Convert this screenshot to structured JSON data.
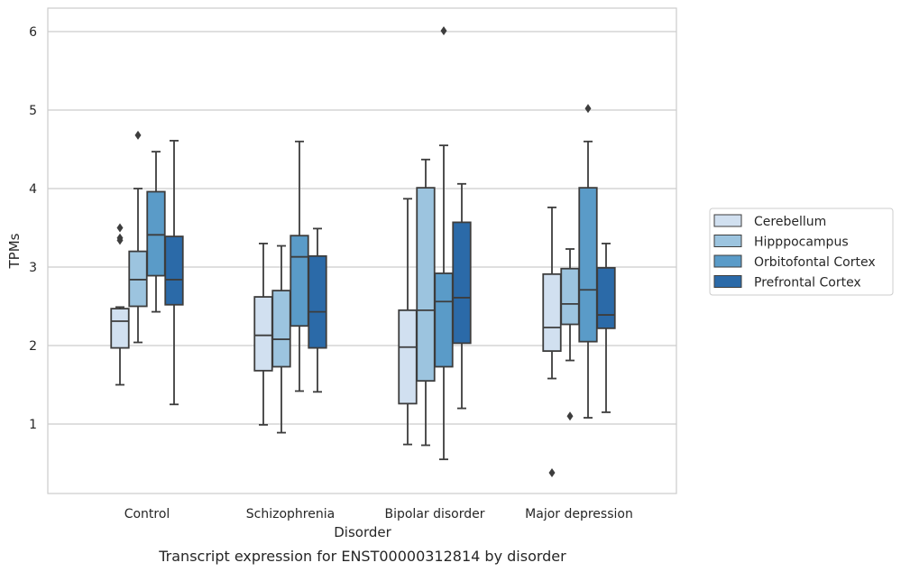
{
  "caption": "Transcript expression for ENST00000312814 by disorder",
  "chart_data": {
    "type": "box",
    "title": "",
    "xlabel": "Disorder",
    "ylabel": "TPMs",
    "ylim": [
      0.1,
      6.3
    ],
    "yticks": [
      1,
      2,
      3,
      4,
      5,
      6
    ],
    "grid": "horizontal",
    "legend_position": "right",
    "categories": [
      "Control",
      "Schizophrenia",
      "Bipolar disorder",
      "Major depression"
    ],
    "series": [
      {
        "name": "Cerebellum",
        "color": "#d1e0f0",
        "boxes": [
          {
            "whisker_low": 1.5,
            "q1": 1.97,
            "median": 2.31,
            "q3": 2.47,
            "whisker_high": 2.49,
            "outliers": [
              3.37,
              3.5,
              3.34
            ]
          },
          {
            "whisker_low": 0.99,
            "q1": 1.68,
            "median": 2.13,
            "q3": 2.62,
            "whisker_high": 3.3,
            "outliers": []
          },
          {
            "whisker_low": 0.74,
            "q1": 1.26,
            "median": 1.98,
            "q3": 2.45,
            "whisker_high": 3.87,
            "outliers": []
          },
          {
            "whisker_low": 1.58,
            "q1": 1.93,
            "median": 2.23,
            "q3": 2.91,
            "whisker_high": 3.76,
            "outliers": [
              0.38
            ]
          }
        ]
      },
      {
        "name": "Hipppocampus",
        "color": "#9cc4df",
        "boxes": [
          {
            "whisker_low": 2.04,
            "q1": 2.5,
            "median": 2.84,
            "q3": 3.2,
            "whisker_high": 4.0,
            "outliers": [
              4.68
            ]
          },
          {
            "whisker_low": 0.89,
            "q1": 1.73,
            "median": 2.08,
            "q3": 2.7,
            "whisker_high": 3.27,
            "outliers": []
          },
          {
            "whisker_low": 0.73,
            "q1": 1.55,
            "median": 2.45,
            "q3": 4.01,
            "whisker_high": 4.37,
            "outliers": []
          },
          {
            "whisker_low": 1.81,
            "q1": 2.27,
            "median": 2.53,
            "q3": 2.98,
            "whisker_high": 3.23,
            "outliers": [
              1.1
            ]
          }
        ]
      },
      {
        "name": "Orbitofontal Cortex",
        "color": "#5a9bc8",
        "boxes": [
          {
            "whisker_low": 2.43,
            "q1": 2.89,
            "median": 3.41,
            "q3": 3.96,
            "whisker_high": 4.47,
            "outliers": []
          },
          {
            "whisker_low": 1.42,
            "q1": 2.25,
            "median": 3.13,
            "q3": 3.4,
            "whisker_high": 4.6,
            "outliers": []
          },
          {
            "whisker_low": 0.55,
            "q1": 1.73,
            "median": 2.56,
            "q3": 2.92,
            "whisker_high": 4.55,
            "outliers": [
              6.01
            ]
          },
          {
            "whisker_low": 1.08,
            "q1": 2.05,
            "median": 2.71,
            "q3": 4.01,
            "whisker_high": 4.6,
            "outliers": [
              5.02
            ]
          }
        ]
      },
      {
        "name": "Prefrontal Cortex",
        "color": "#2b6aa8",
        "boxes": [
          {
            "whisker_low": 1.25,
            "q1": 2.52,
            "median": 2.84,
            "q3": 3.39,
            "whisker_high": 4.61,
            "outliers": []
          },
          {
            "whisker_low": 1.41,
            "q1": 1.97,
            "median": 2.43,
            "q3": 3.14,
            "whisker_high": 3.49,
            "outliers": []
          },
          {
            "whisker_low": 1.2,
            "q1": 2.03,
            "median": 2.61,
            "q3": 3.57,
            "whisker_high": 4.06,
            "outliers": []
          },
          {
            "whisker_low": 1.15,
            "q1": 2.22,
            "median": 2.39,
            "q3": 2.99,
            "whisker_high": 3.3,
            "outliers": []
          }
        ]
      }
    ]
  }
}
